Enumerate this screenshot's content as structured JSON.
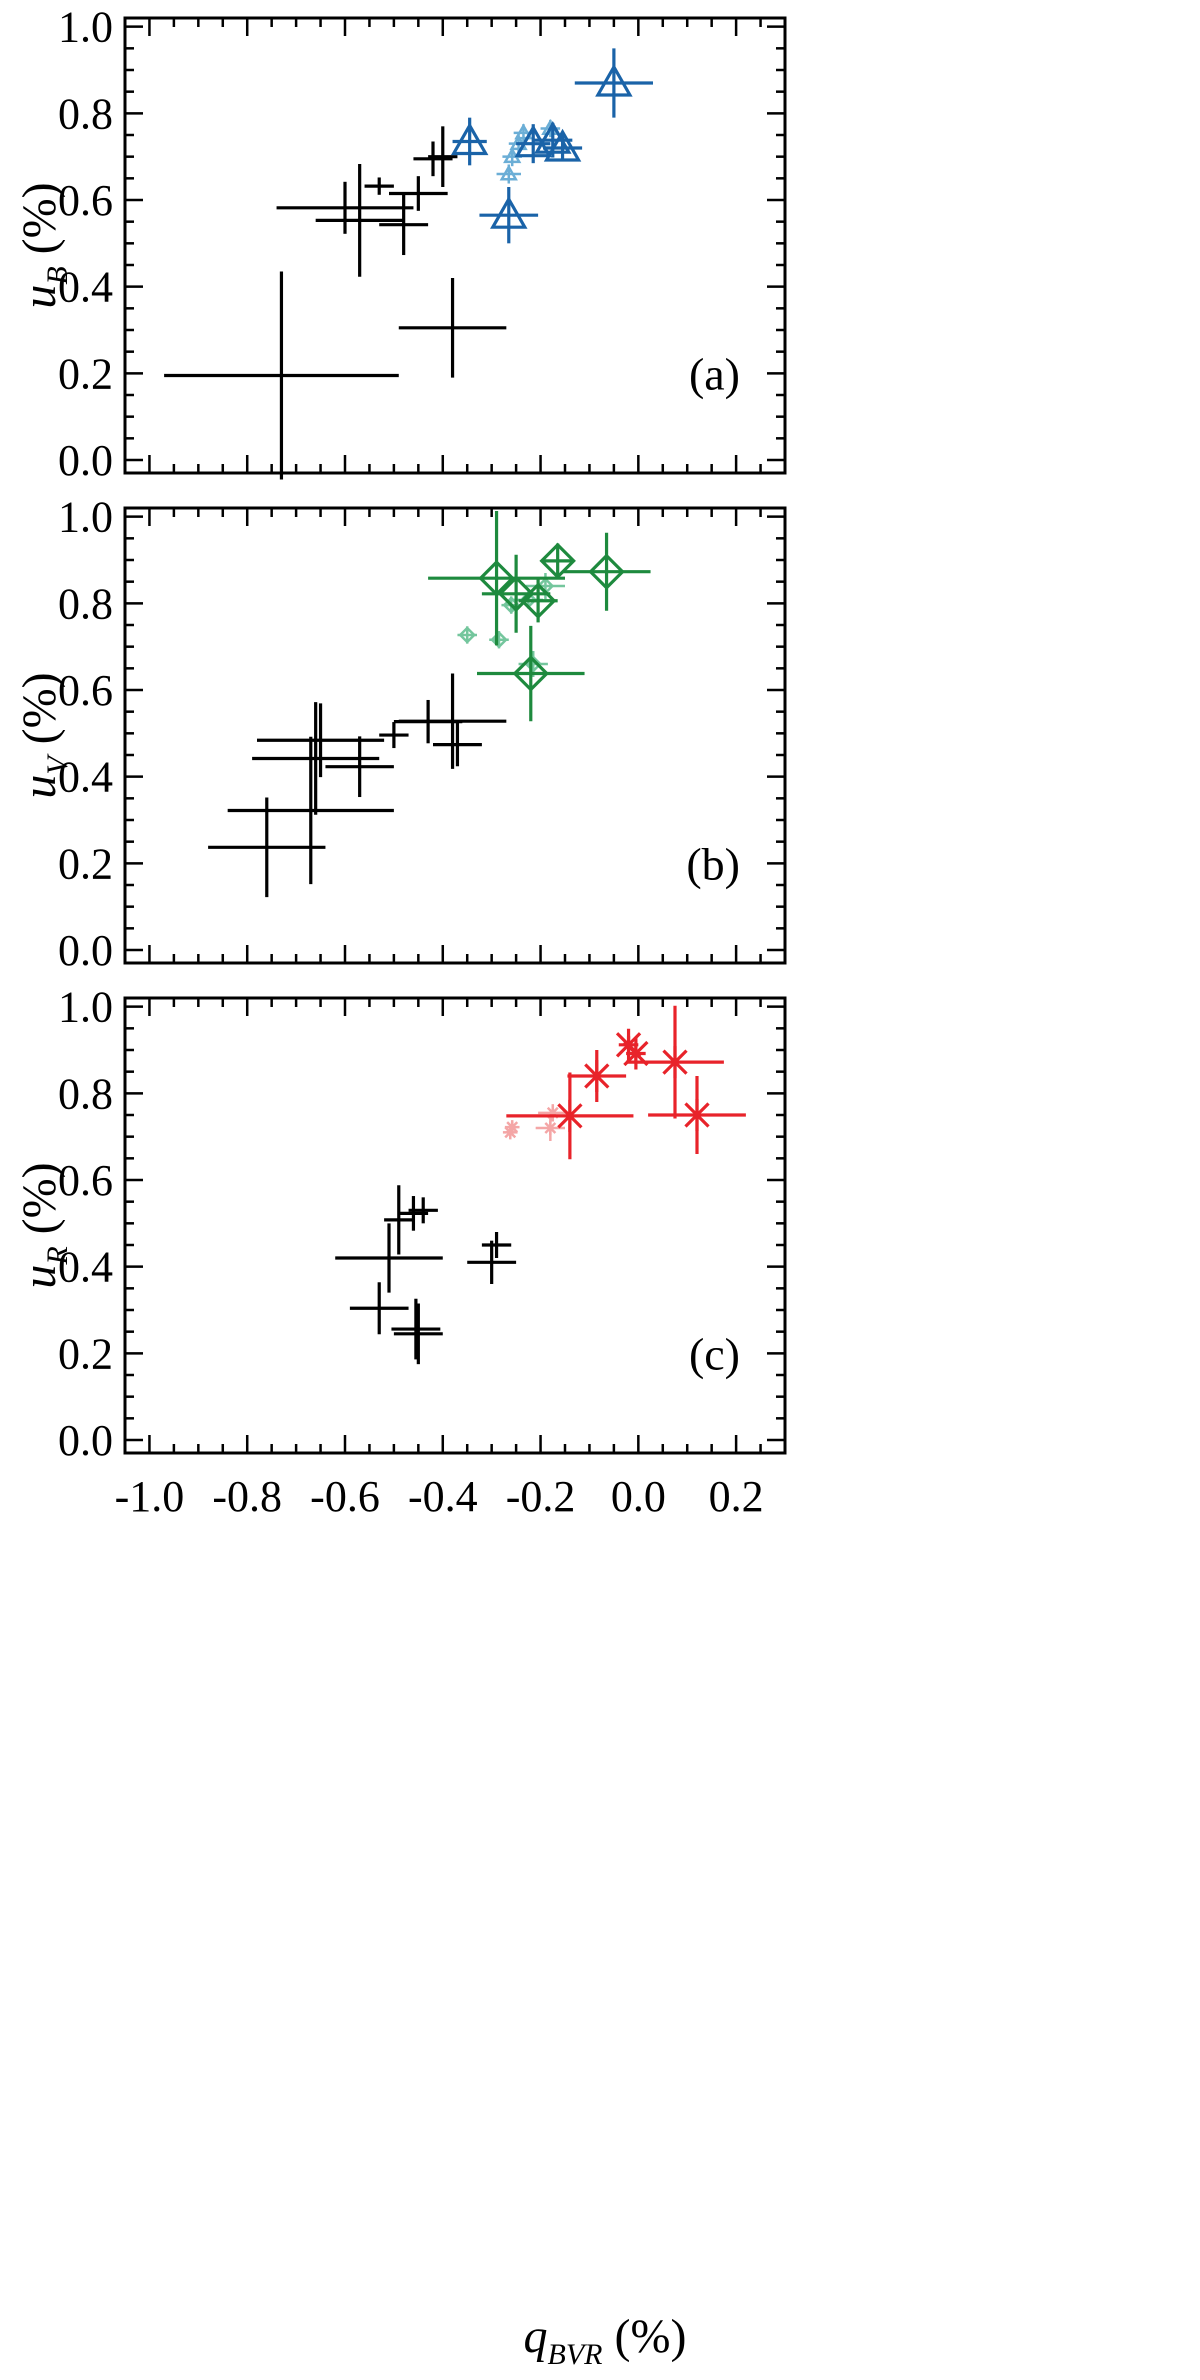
{
  "figure": {
    "x_label": "q",
    "x_label_sub": "BVR",
    "x_label_unit": " (%)"
  },
  "chart_data": [
    {
      "type": "scatter",
      "panel_label": "(a)",
      "ylabel": "u",
      "ylabel_sub": "B",
      "ylabel_unit": " (%)",
      "xlim": [
        -1.05,
        0.3
      ],
      "ylim": [
        -0.03,
        1.02
      ],
      "xticks": [
        "-1.0",
        "-0.8",
        "-0.6",
        "-0.4",
        "-0.2",
        "0.0",
        "0.2"
      ],
      "xtick_values": [
        -1.0,
        -0.8,
        -0.6,
        -0.4,
        -0.2,
        0.0,
        0.2
      ],
      "yticks": [
        "0.0",
        "0.2",
        "0.4",
        "0.6",
        "0.8",
        "1.0"
      ],
      "ytick_values": [
        0.0,
        0.2,
        0.4,
        0.6,
        0.8,
        1.0
      ],
      "series": [
        {
          "marker": "cross",
          "color": "#000000",
          "points": [
            {
              "x": -0.73,
              "y": 0.195,
              "xerr": 0.24,
              "yerr": 0.24
            },
            {
              "x": -0.38,
              "y": 0.305,
              "xerr": 0.11,
              "yerr": 0.115
            },
            {
              "x": -0.6,
              "y": 0.582,
              "xerr": 0.14,
              "yerr": 0.06
            },
            {
              "x": -0.57,
              "y": 0.553,
              "xerr": 0.09,
              "yerr": 0.13
            },
            {
              "x": -0.53,
              "y": 0.632,
              "xerr": 0.03,
              "yerr": 0.02
            },
            {
              "x": -0.48,
              "y": 0.543,
              "xerr": 0.05,
              "yerr": 0.07
            },
            {
              "x": -0.45,
              "y": 0.615,
              "xerr": 0.06,
              "yerr": 0.04
            },
            {
              "x": -0.42,
              "y": 0.695,
              "xerr": 0.04,
              "yerr": 0.04
            },
            {
              "x": -0.4,
              "y": 0.7,
              "xerr": 0.03,
              "yerr": 0.07
            }
          ]
        },
        {
          "marker": "triangle-small",
          "color": "#6baed6",
          "points": [
            {
              "x": -0.265,
              "y": 0.66,
              "xerr": 0.025,
              "yerr": 0.022
            },
            {
              "x": -0.258,
              "y": 0.7,
              "xerr": 0.02,
              "yerr": 0.022
            },
            {
              "x": -0.245,
              "y": 0.73,
              "xerr": 0.02,
              "yerr": 0.02
            },
            {
              "x": -0.235,
              "y": 0.755,
              "xerr": 0.02,
              "yerr": 0.02
            },
            {
              "x": -0.18,
              "y": 0.765,
              "xerr": 0.02,
              "yerr": 0.02
            }
          ]
        },
        {
          "marker": "triangle",
          "color": "#1a63a8",
          "points": [
            {
              "x": -0.05,
              "y": 0.87,
              "xerr": 0.08,
              "yerr": 0.08
            },
            {
              "x": -0.345,
              "y": 0.735,
              "xerr": 0.035,
              "yerr": 0.055
            },
            {
              "x": -0.265,
              "y": 0.565,
              "xerr": 0.06,
              "yerr": 0.065
            },
            {
              "x": -0.215,
              "y": 0.73,
              "xerr": 0.035,
              "yerr": 0.045
            },
            {
              "x": -0.175,
              "y": 0.738,
              "xerr": 0.04,
              "yerr": 0.04
            },
            {
              "x": -0.155,
              "y": 0.72,
              "xerr": 0.04,
              "yerr": 0.03
            }
          ]
        }
      ]
    },
    {
      "type": "scatter",
      "panel_label": "(b)",
      "ylabel": "u",
      "ylabel_sub": "V",
      "ylabel_unit": " (%)",
      "xlim": [
        -1.05,
        0.3
      ],
      "ylim": [
        -0.03,
        1.02
      ],
      "xticks": [
        "-1.0",
        "-0.8",
        "-0.6",
        "-0.4",
        "-0.2",
        "0.0",
        "0.2"
      ],
      "xtick_values": [
        -1.0,
        -0.8,
        -0.6,
        -0.4,
        -0.2,
        0.0,
        0.2
      ],
      "yticks": [
        "0.0",
        "0.2",
        "0.4",
        "0.6",
        "0.8",
        "1.0"
      ],
      "ytick_values": [
        0.0,
        0.2,
        0.4,
        0.6,
        0.8,
        1.0
      ],
      "series": [
        {
          "marker": "cross",
          "color": "#000000",
          "points": [
            {
              "x": -0.76,
              "y": 0.237,
              "xerr": 0.12,
              "yerr": 0.115
            },
            {
              "x": -0.67,
              "y": 0.322,
              "xerr": 0.17,
              "yerr": 0.17
            },
            {
              "x": -0.66,
              "y": 0.442,
              "xerr": 0.13,
              "yerr": 0.13
            },
            {
              "x": -0.65,
              "y": 0.484,
              "xerr": 0.13,
              "yerr": 0.085
            },
            {
              "x": -0.57,
              "y": 0.423,
              "xerr": 0.07,
              "yerr": 0.07
            },
            {
              "x": -0.5,
              "y": 0.496,
              "xerr": 0.03,
              "yerr": 0.03
            },
            {
              "x": -0.43,
              "y": 0.527,
              "xerr": 0.07,
              "yerr": 0.05
            },
            {
              "x": -0.38,
              "y": 0.528,
              "xerr": 0.11,
              "yerr": 0.11
            },
            {
              "x": -0.37,
              "y": 0.474,
              "xerr": 0.05,
              "yerr": 0.05
            }
          ]
        },
        {
          "marker": "diamond-small",
          "color": "#74c69d",
          "points": [
            {
              "x": -0.35,
              "y": 0.727,
              "xerr": 0.02,
              "yerr": 0.02
            },
            {
              "x": -0.285,
              "y": 0.716,
              "xerr": 0.02,
              "yerr": 0.02
            },
            {
              "x": -0.26,
              "y": 0.796,
              "xerr": 0.02,
              "yerr": 0.02
            },
            {
              "x": -0.225,
              "y": 0.808,
              "xerr": 0.03,
              "yerr": 0.02
            },
            {
              "x": -0.215,
              "y": 0.66,
              "xerr": 0.03,
              "yerr": 0.03
            },
            {
              "x": -0.19,
              "y": 0.84,
              "xerr": 0.04,
              "yerr": 0.03
            }
          ]
        },
        {
          "marker": "diamond",
          "color": "#1e8a3e",
          "points": [
            {
              "x": -0.29,
              "y": 0.858,
              "xerr": 0.14,
              "yerr": 0.155
            },
            {
              "x": -0.25,
              "y": 0.822,
              "xerr": 0.07,
              "yerr": 0.09
            },
            {
              "x": -0.205,
              "y": 0.806,
              "xerr": 0.04,
              "yerr": 0.05
            },
            {
              "x": -0.22,
              "y": 0.638,
              "xerr": 0.11,
              "yerr": 0.11
            },
            {
              "x": -0.165,
              "y": 0.898,
              "xerr": 0.03,
              "yerr": 0.04
            },
            {
              "x": -0.065,
              "y": 0.873,
              "xerr": 0.09,
              "yerr": 0.09
            }
          ]
        }
      ]
    },
    {
      "type": "scatter",
      "panel_label": "(c)",
      "ylabel": "u",
      "ylabel_sub": "R",
      "ylabel_unit": " (%)",
      "xlim": [
        -1.05,
        0.3
      ],
      "ylim": [
        -0.03,
        1.02
      ],
      "xticks": [
        "-1.0",
        "-0.8",
        "-0.6",
        "-0.4",
        "-0.2",
        "0.0",
        "0.2"
      ],
      "xtick_values": [
        -1.0,
        -0.8,
        -0.6,
        -0.4,
        -0.2,
        0.0,
        0.2
      ],
      "yticks": [
        "0.0",
        "0.2",
        "0.4",
        "0.6",
        "0.8",
        "1.0"
      ],
      "ytick_values": [
        0.0,
        0.2,
        0.4,
        0.6,
        0.8,
        1.0
      ],
      "series": [
        {
          "marker": "cross",
          "color": "#000000",
          "points": [
            {
              "x": -0.53,
              "y": 0.304,
              "xerr": 0.06,
              "yerr": 0.06
            },
            {
              "x": -0.51,
              "y": 0.42,
              "xerr": 0.11,
              "yerr": 0.08
            },
            {
              "x": -0.49,
              "y": 0.508,
              "xerr": 0.03,
              "yerr": 0.08
            },
            {
              "x": -0.46,
              "y": 0.523,
              "xerr": 0.03,
              "yerr": 0.04
            },
            {
              "x": -0.44,
              "y": 0.53,
              "xerr": 0.03,
              "yerr": 0.03
            },
            {
              "x": -0.455,
              "y": 0.256,
              "xerr": 0.05,
              "yerr": 0.07
            },
            {
              "x": -0.45,
              "y": 0.245,
              "xerr": 0.05,
              "yerr": 0.07
            },
            {
              "x": -0.3,
              "y": 0.41,
              "xerr": 0.05,
              "yerr": 0.05
            },
            {
              "x": -0.29,
              "y": 0.45,
              "xerr": 0.03,
              "yerr": 0.03
            }
          ]
        },
        {
          "marker": "asterisk-small",
          "color": "#f4a6a6",
          "points": [
            {
              "x": -0.262,
              "y": 0.71,
              "xerr": 0.015,
              "yerr": 0.012
            },
            {
              "x": -0.258,
              "y": 0.722,
              "xerr": 0.015,
              "yerr": 0.012
            },
            {
              "x": -0.18,
              "y": 0.72,
              "xerr": 0.03,
              "yerr": 0.03
            },
            {
              "x": -0.175,
              "y": 0.755,
              "xerr": 0.03,
              "yerr": 0.02
            }
          ]
        },
        {
          "marker": "asterisk",
          "color": "#e8232a",
          "points": [
            {
              "x": -0.14,
              "y": 0.748,
              "xerr": 0.13,
              "yerr": 0.1
            },
            {
              "x": -0.085,
              "y": 0.84,
              "xerr": 0.06,
              "yerr": 0.06
            },
            {
              "x": -0.02,
              "y": 0.912,
              "xerr": 0.02,
              "yerr": 0.02
            },
            {
              "x": -0.005,
              "y": 0.892,
              "xerr": 0.02,
              "yerr": 0.02
            },
            {
              "x": 0.075,
              "y": 0.872,
              "xerr": 0.1,
              "yerr": 0.13
            },
            {
              "x": 0.12,
              "y": 0.75,
              "xerr": 0.1,
              "yerr": 0.09
            }
          ]
        }
      ]
    }
  ]
}
